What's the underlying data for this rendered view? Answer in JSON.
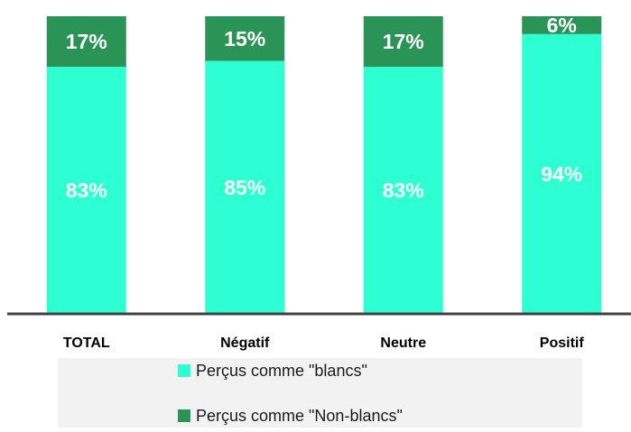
{
  "chart_data": {
    "type": "stacked_bar",
    "categories": [
      "TOTAL",
      "Négatif",
      "Neutre",
      "Positif"
    ],
    "ylim": [
      0,
      100
    ],
    "series": [
      {
        "name": "Perçus comme \"blancs\"",
        "color": "#2effd2",
        "values": [
          83,
          85,
          83,
          94
        ],
        "value_labels": [
          "83%",
          "85%",
          "83%",
          "94%"
        ]
      },
      {
        "name": "Perçus comme \"Non-blancs\"",
        "color": "#2a9456",
        "values": [
          17,
          15,
          17,
          6
        ],
        "value_labels": [
          "17%",
          "15%",
          "17%",
          "6%"
        ]
      }
    ]
  }
}
